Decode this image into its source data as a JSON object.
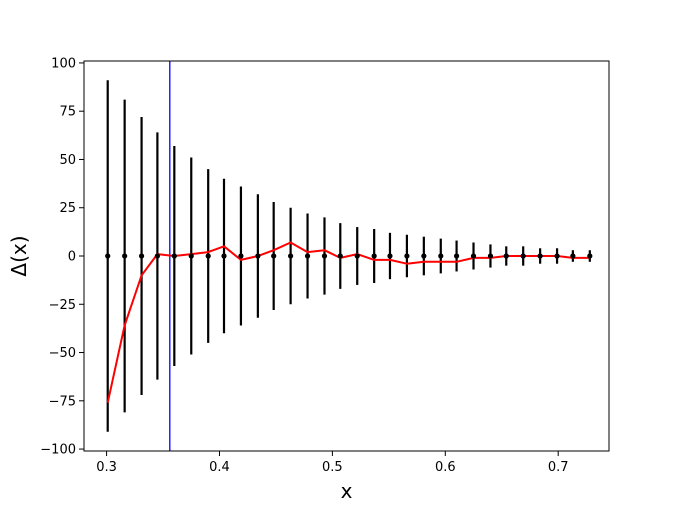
{
  "chart_data": {
    "type": "scatter",
    "title": "",
    "xlabel": "x",
    "ylabel": "Δ(x)",
    "xlim": [
      0.28,
      0.745
    ],
    "ylim": [
      -101,
      101
    ],
    "xticks": [
      0.3,
      0.4,
      0.5,
      0.6,
      0.7
    ],
    "xtick_labels": [
      "0.3",
      "0.4",
      "0.5",
      "0.6",
      "0.7"
    ],
    "yticks": [
      -100,
      -75,
      -50,
      -25,
      0,
      25,
      50,
      75,
      100
    ],
    "ytick_labels": [
      "−100",
      "−75",
      "−50",
      "−25",
      "0",
      "25",
      "50",
      "75",
      "100"
    ],
    "grid": false,
    "vline": {
      "x": 0.356,
      "color": "#0000ff"
    },
    "series": [
      {
        "kind": "errorbar",
        "color": "#000000",
        "x": [
          0.301,
          0.316,
          0.331,
          0.345,
          0.36,
          0.375,
          0.39,
          0.404,
          0.419,
          0.434,
          0.448,
          0.463,
          0.478,
          0.493,
          0.507,
          0.522,
          0.537,
          0.551,
          0.566,
          0.581,
          0.596,
          0.61,
          0.625,
          0.64,
          0.654,
          0.669,
          0.684,
          0.699,
          0.713,
          0.728
        ],
        "y": [
          0,
          0,
          0,
          0,
          0,
          0,
          0,
          0,
          0,
          0,
          0,
          0,
          0,
          0,
          0,
          0,
          0,
          0,
          0,
          0,
          0,
          0,
          0,
          0,
          0,
          0,
          0,
          0,
          0,
          0
        ],
        "yerr": [
          91,
          81,
          72,
          64,
          57,
          51,
          45,
          40,
          36,
          32,
          28,
          25,
          22,
          20,
          17,
          15,
          14,
          12,
          11,
          10,
          9,
          8,
          7,
          6,
          5,
          5,
          4,
          4,
          3,
          3
        ]
      },
      {
        "kind": "line",
        "color": "#ff0000",
        "x": [
          0.301,
          0.316,
          0.331,
          0.345,
          0.36,
          0.375,
          0.39,
          0.404,
          0.419,
          0.434,
          0.448,
          0.463,
          0.478,
          0.493,
          0.507,
          0.522,
          0.537,
          0.551,
          0.566,
          0.581,
          0.596,
          0.61,
          0.625,
          0.64,
          0.654,
          0.669,
          0.684,
          0.699,
          0.713,
          0.728
        ],
        "y": [
          -76,
          -36,
          -10,
          1,
          0,
          1,
          2,
          5,
          -2,
          0,
          3,
          7,
          2,
          3,
          -1,
          1,
          -2,
          -2,
          -4,
          -3,
          -3,
          -3,
          -1,
          -1,
          0,
          0,
          0,
          0,
          -1,
          -1
        ]
      }
    ]
  }
}
